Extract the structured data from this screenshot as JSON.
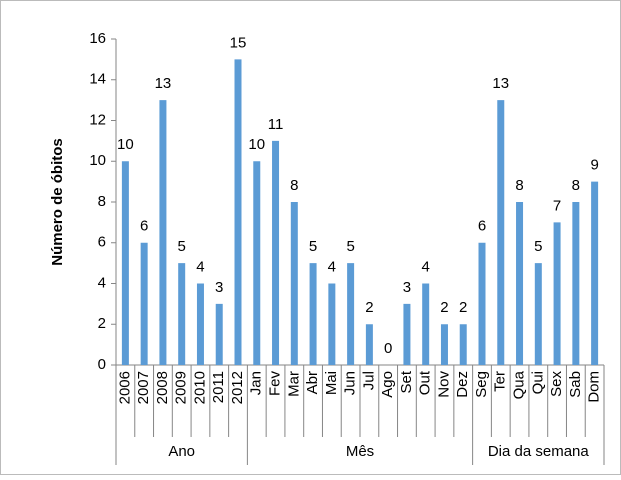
{
  "chart_data": {
    "type": "bar",
    "y_label": "Número de óbitos",
    "color": "#5b9bd5",
    "ylim": [
      0,
      16
    ],
    "yticks": [
      0,
      2,
      4,
      6,
      8,
      10,
      12,
      14,
      16
    ],
    "groups": [
      {
        "label": "Ano",
        "categories": [
          "2006",
          "2007",
          "2008",
          "2009",
          "2010",
          "2011",
          "2012"
        ],
        "values": [
          10,
          6,
          13,
          5,
          4,
          3,
          15
        ]
      },
      {
        "label": "Mês",
        "categories": [
          "Jan",
          "Fev",
          "Mar",
          "Abr",
          "Mai",
          "Jun",
          "Jul",
          "Ago",
          "Set",
          "Out",
          "Nov",
          "Dez"
        ],
        "values": [
          10,
          11,
          8,
          5,
          4,
          5,
          2,
          0,
          3,
          4,
          2,
          2
        ]
      },
      {
        "label": "Dia da semana",
        "categories": [
          "Seg",
          "Ter",
          "Qua",
          "Qui",
          "Sex",
          "Sab",
          "Dom"
        ],
        "values": [
          6,
          13,
          8,
          5,
          7,
          8,
          9
        ]
      }
    ]
  }
}
